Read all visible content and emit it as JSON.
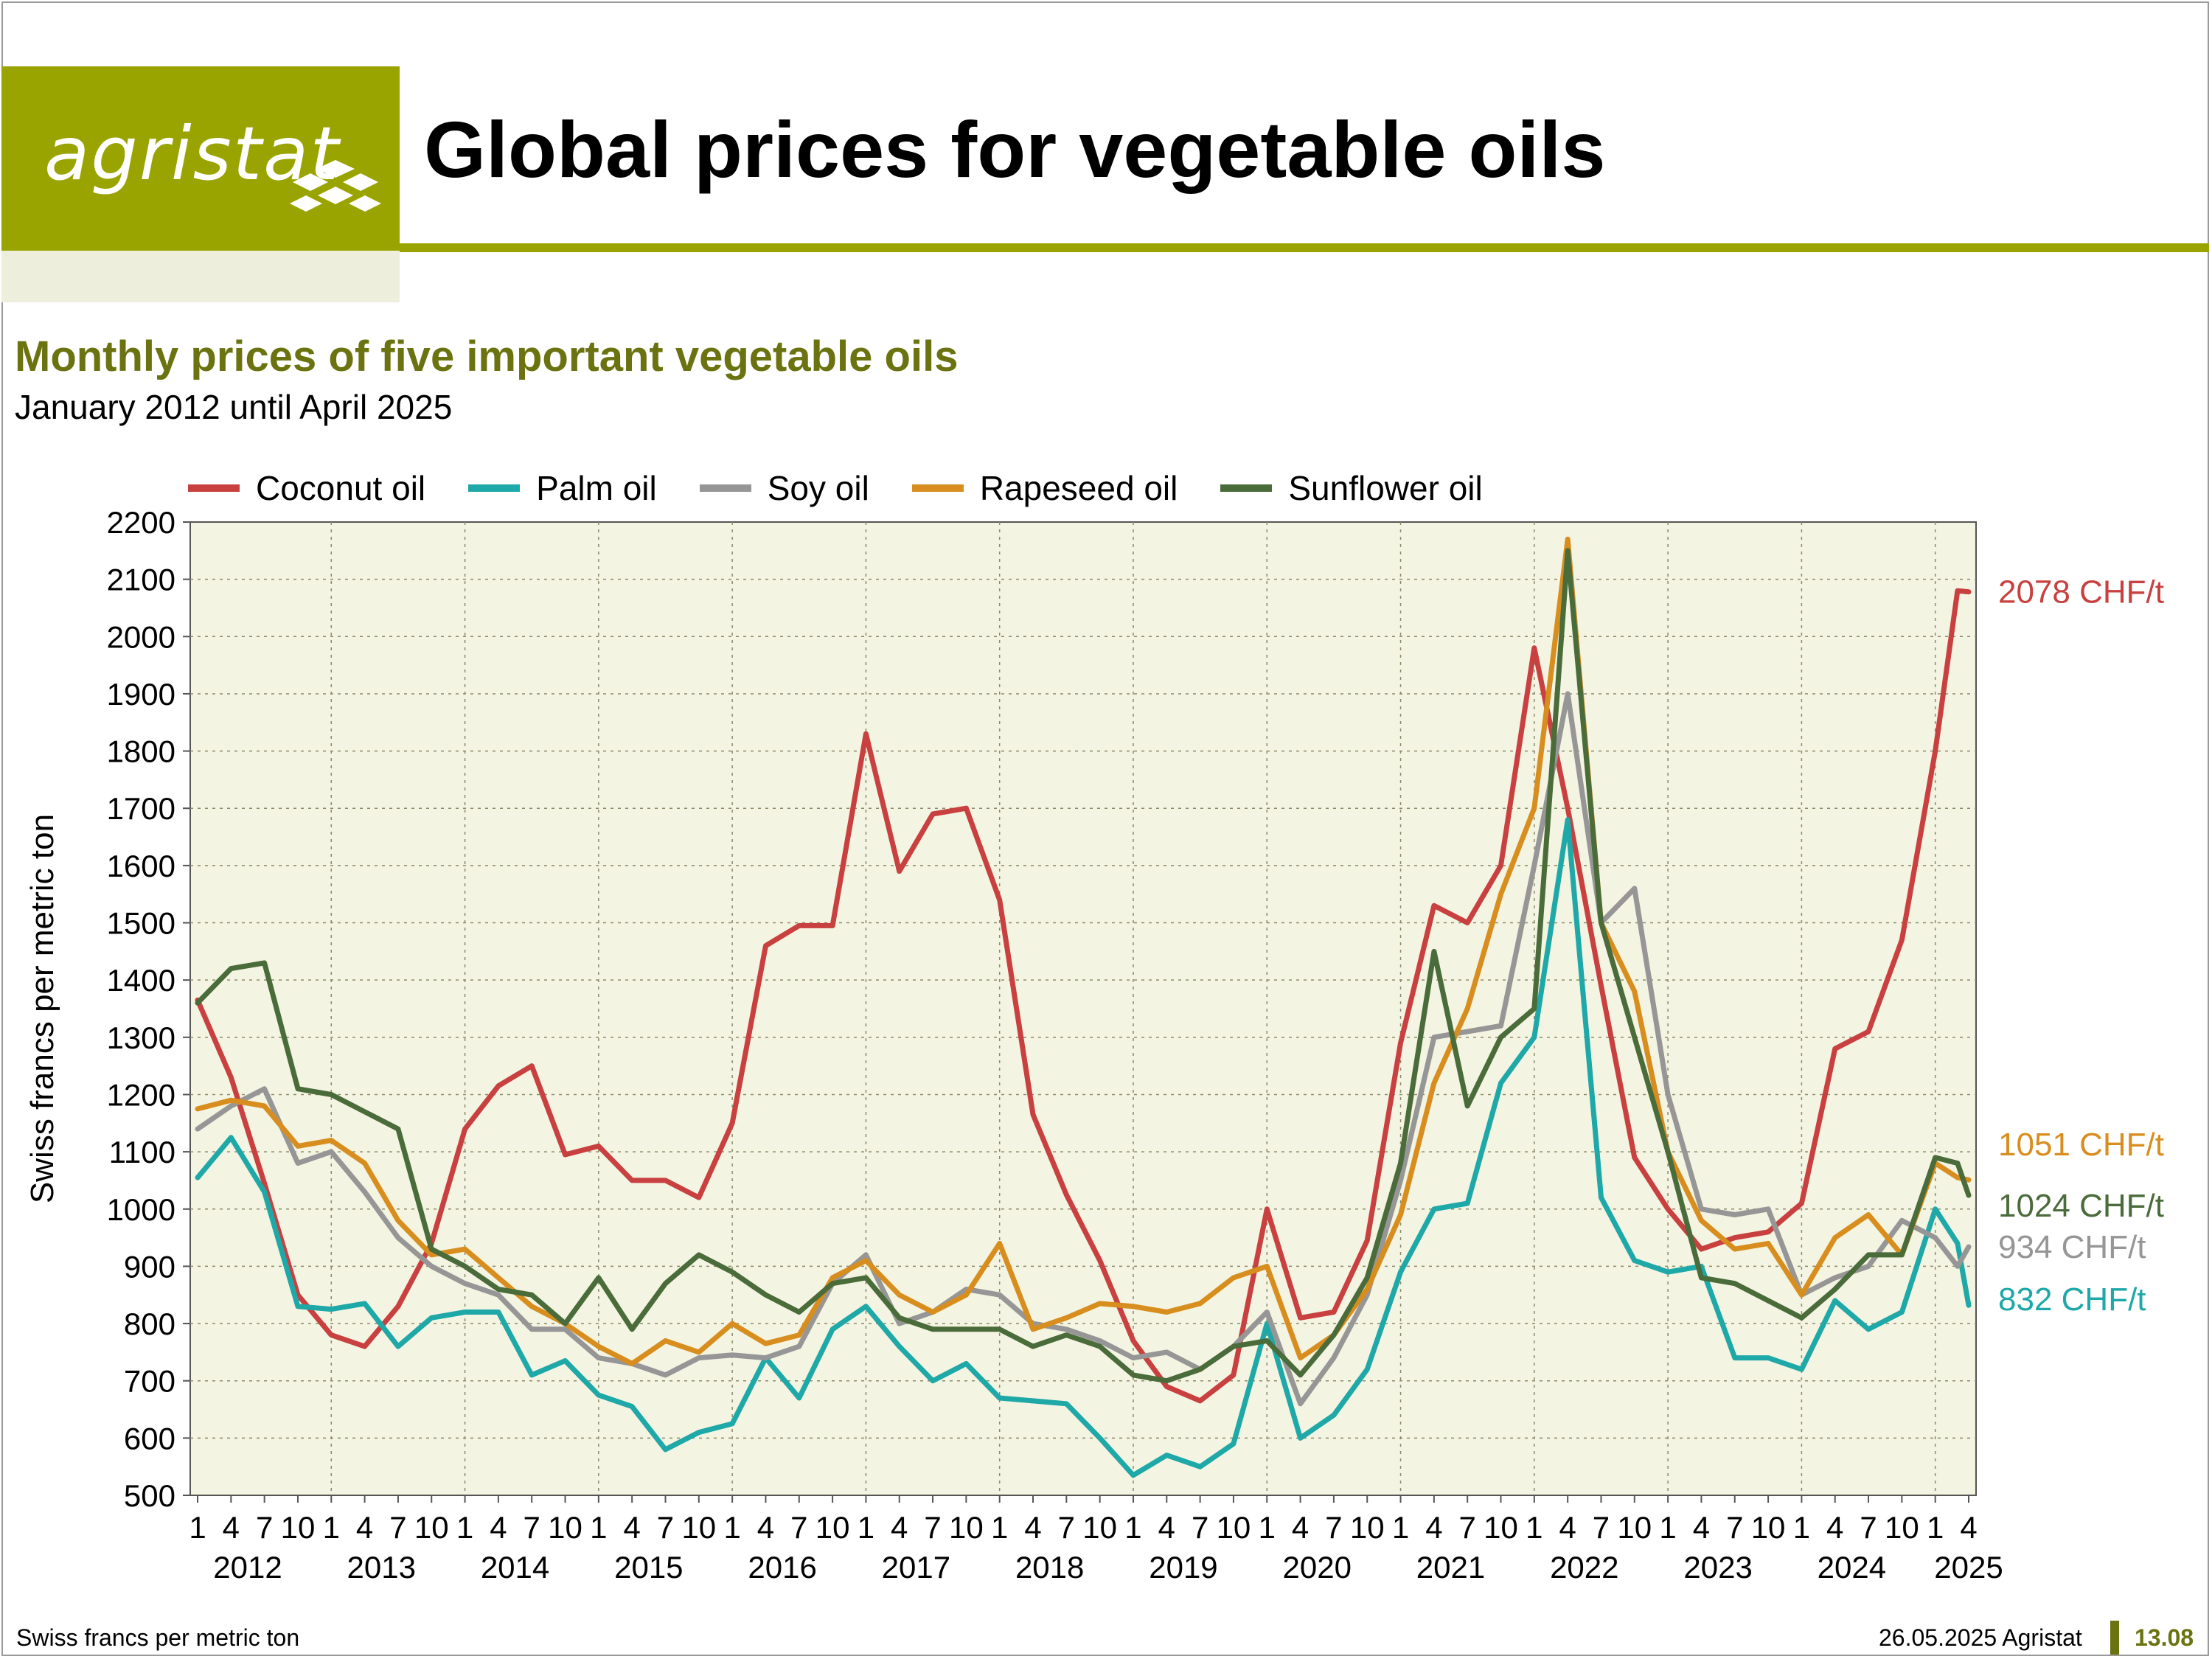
{
  "header": {
    "logo": "agristat",
    "title": "Global prices for vegetable oils"
  },
  "subtitle": "Monthly prices of five important vegetable oils",
  "period": "January 2012 until April 2025",
  "footer": {
    "unit_note": "Swiss francs per metric ton",
    "date_source": "26.05.2025 Agristat",
    "page": "13.08"
  },
  "colors": {
    "brand": "#9aa400",
    "brand_dark": "#6b7310",
    "plot_background": "#f4f4e2"
  },
  "chart_data": {
    "type": "line",
    "title": "",
    "xlabel": "",
    "ylabel": "Swiss francs per metric ton",
    "ylim": [
      500,
      2200
    ],
    "yticks": [
      500,
      600,
      700,
      800,
      900,
      1000,
      1100,
      1200,
      1300,
      1400,
      1500,
      1600,
      1700,
      1800,
      1900,
      2000,
      2100,
      2200
    ],
    "grid": true,
    "legend_position": "top",
    "x_start": "2012-01",
    "x_end": "2025-04",
    "x_month_ticks": [
      "1",
      "4",
      "7",
      "10"
    ],
    "x_years": [
      "2012",
      "2013",
      "2014",
      "2015",
      "2016",
      "2017",
      "2018",
      "2019",
      "2020",
      "2021",
      "2022",
      "2023",
      "2024",
      "2025"
    ],
    "series": [
      {
        "name": "Coconut oil",
        "color": "#c8403f",
        "end_label": "2078 CHF/t",
        "values": [
          [
            "2012-01",
            1365
          ],
          [
            "2012-04",
            1230
          ],
          [
            "2012-07",
            1045
          ],
          [
            "2012-10",
            850
          ],
          [
            "2013-01",
            780
          ],
          [
            "2013-04",
            760
          ],
          [
            "2013-07",
            830
          ],
          [
            "2013-10",
            940
          ],
          [
            "2014-01",
            1140
          ],
          [
            "2014-04",
            1215
          ],
          [
            "2014-07",
            1250
          ],
          [
            "2014-10",
            1095
          ],
          [
            "2015-01",
            1110
          ],
          [
            "2015-04",
            1050
          ],
          [
            "2015-07",
            1050
          ],
          [
            "2015-10",
            1020
          ],
          [
            "2016-01",
            1150
          ],
          [
            "2016-04",
            1460
          ],
          [
            "2016-07",
            1495
          ],
          [
            "2016-10",
            1495
          ],
          [
            "2017-01",
            1830
          ],
          [
            "2017-04",
            1590
          ],
          [
            "2017-07",
            1690
          ],
          [
            "2017-10",
            1700
          ],
          [
            "2018-01",
            1540
          ],
          [
            "2018-04",
            1165
          ],
          [
            "2018-07",
            1025
          ],
          [
            "2018-10",
            910
          ],
          [
            "2019-01",
            770
          ],
          [
            "2019-04",
            690
          ],
          [
            "2019-07",
            665
          ],
          [
            "2019-10",
            710
          ],
          [
            "2020-01",
            1000
          ],
          [
            "2020-04",
            810
          ],
          [
            "2020-07",
            820
          ],
          [
            "2020-10",
            945
          ],
          [
            "2021-01",
            1290
          ],
          [
            "2021-04",
            1530
          ],
          [
            "2021-07",
            1500
          ],
          [
            "2021-10",
            1600
          ],
          [
            "2022-01",
            1980
          ],
          [
            "2022-04",
            1700
          ],
          [
            "2022-07",
            1390
          ],
          [
            "2022-10",
            1090
          ],
          [
            "2023-01",
            1000
          ],
          [
            "2023-04",
            930
          ],
          [
            "2023-07",
            950
          ],
          [
            "2023-10",
            960
          ],
          [
            "2024-01",
            1010
          ],
          [
            "2024-04",
            1280
          ],
          [
            "2024-07",
            1310
          ],
          [
            "2024-10",
            1470
          ],
          [
            "2025-01",
            1800
          ],
          [
            "2025-03",
            2080
          ],
          [
            "2025-04",
            2078
          ]
        ]
      },
      {
        "name": "Palm oil",
        "color": "#1ea8a8",
        "end_label": "832 CHF/t",
        "values": [
          [
            "2012-01",
            1055
          ],
          [
            "2012-04",
            1125
          ],
          [
            "2012-07",
            1030
          ],
          [
            "2012-10",
            830
          ],
          [
            "2013-01",
            825
          ],
          [
            "2013-04",
            835
          ],
          [
            "2013-07",
            760
          ],
          [
            "2013-10",
            810
          ],
          [
            "2014-01",
            820
          ],
          [
            "2014-04",
            820
          ],
          [
            "2014-07",
            710
          ],
          [
            "2014-10",
            735
          ],
          [
            "2015-01",
            675
          ],
          [
            "2015-04",
            655
          ],
          [
            "2015-07",
            580
          ],
          [
            "2015-10",
            610
          ],
          [
            "2016-01",
            625
          ],
          [
            "2016-04",
            740
          ],
          [
            "2016-07",
            670
          ],
          [
            "2016-10",
            790
          ],
          [
            "2017-01",
            830
          ],
          [
            "2017-04",
            760
          ],
          [
            "2017-07",
            700
          ],
          [
            "2017-10",
            730
          ],
          [
            "2018-01",
            670
          ],
          [
            "2018-04",
            665
          ],
          [
            "2018-07",
            660
          ],
          [
            "2018-10",
            600
          ],
          [
            "2019-01",
            535
          ],
          [
            "2019-04",
            570
          ],
          [
            "2019-07",
            550
          ],
          [
            "2019-10",
            590
          ],
          [
            "2020-01",
            800
          ],
          [
            "2020-04",
            600
          ],
          [
            "2020-07",
            640
          ],
          [
            "2020-10",
            720
          ],
          [
            "2021-01",
            890
          ],
          [
            "2021-04",
            1000
          ],
          [
            "2021-07",
            1010
          ],
          [
            "2021-10",
            1220
          ],
          [
            "2022-01",
            1300
          ],
          [
            "2022-04",
            1680
          ],
          [
            "2022-07",
            1020
          ],
          [
            "2022-10",
            910
          ],
          [
            "2023-01",
            890
          ],
          [
            "2023-04",
            900
          ],
          [
            "2023-07",
            740
          ],
          [
            "2023-10",
            740
          ],
          [
            "2024-01",
            720
          ],
          [
            "2024-04",
            840
          ],
          [
            "2024-07",
            790
          ],
          [
            "2024-10",
            820
          ],
          [
            "2025-01",
            1000
          ],
          [
            "2025-03",
            940
          ],
          [
            "2025-04",
            832
          ]
        ]
      },
      {
        "name": "Soy oil",
        "color": "#969696",
        "end_label": "934 CHF/t",
        "values": [
          [
            "2012-01",
            1140
          ],
          [
            "2012-04",
            1180
          ],
          [
            "2012-07",
            1210
          ],
          [
            "2012-10",
            1080
          ],
          [
            "2013-01",
            1100
          ],
          [
            "2013-04",
            1030
          ],
          [
            "2013-07",
            950
          ],
          [
            "2013-10",
            900
          ],
          [
            "2014-01",
            870
          ],
          [
            "2014-04",
            850
          ],
          [
            "2014-07",
            790
          ],
          [
            "2014-10",
            790
          ],
          [
            "2015-01",
            740
          ],
          [
            "2015-04",
            730
          ],
          [
            "2015-07",
            710
          ],
          [
            "2015-10",
            740
          ],
          [
            "2016-01",
            745
          ],
          [
            "2016-04",
            740
          ],
          [
            "2016-07",
            760
          ],
          [
            "2016-10",
            870
          ],
          [
            "2017-01",
            920
          ],
          [
            "2017-04",
            800
          ],
          [
            "2017-07",
            820
          ],
          [
            "2017-10",
            860
          ],
          [
            "2018-01",
            850
          ],
          [
            "2018-04",
            800
          ],
          [
            "2018-07",
            790
          ],
          [
            "2018-10",
            770
          ],
          [
            "2019-01",
            740
          ],
          [
            "2019-04",
            750
          ],
          [
            "2019-07",
            720
          ],
          [
            "2019-10",
            760
          ],
          [
            "2020-01",
            820
          ],
          [
            "2020-04",
            660
          ],
          [
            "2020-07",
            740
          ],
          [
            "2020-10",
            850
          ],
          [
            "2021-01",
            1050
          ],
          [
            "2021-04",
            1300
          ],
          [
            "2021-07",
            1310
          ],
          [
            "2021-10",
            1320
          ],
          [
            "2022-01",
            1600
          ],
          [
            "2022-04",
            1900
          ],
          [
            "2022-07",
            1500
          ],
          [
            "2022-10",
            1560
          ],
          [
            "2023-01",
            1200
          ],
          [
            "2023-04",
            1000
          ],
          [
            "2023-07",
            990
          ],
          [
            "2023-10",
            1000
          ],
          [
            "2024-01",
            850
          ],
          [
            "2024-04",
            880
          ],
          [
            "2024-07",
            900
          ],
          [
            "2024-10",
            980
          ],
          [
            "2025-01",
            950
          ],
          [
            "2025-03",
            900
          ],
          [
            "2025-04",
            934
          ]
        ]
      },
      {
        "name": "Rapeseed oil",
        "color": "#d88e1e",
        "end_label": "1051 CHF/t",
        "values": [
          [
            "2012-01",
            1175
          ],
          [
            "2012-04",
            1190
          ],
          [
            "2012-07",
            1180
          ],
          [
            "2012-10",
            1110
          ],
          [
            "2013-01",
            1120
          ],
          [
            "2013-04",
            1080
          ],
          [
            "2013-07",
            980
          ],
          [
            "2013-10",
            920
          ],
          [
            "2014-01",
            930
          ],
          [
            "2014-04",
            880
          ],
          [
            "2014-07",
            830
          ],
          [
            "2014-10",
            800
          ],
          [
            "2015-01",
            760
          ],
          [
            "2015-04",
            730
          ],
          [
            "2015-07",
            770
          ],
          [
            "2015-10",
            750
          ],
          [
            "2016-01",
            800
          ],
          [
            "2016-04",
            765
          ],
          [
            "2016-07",
            780
          ],
          [
            "2016-10",
            880
          ],
          [
            "2017-01",
            910
          ],
          [
            "2017-04",
            850
          ],
          [
            "2017-07",
            820
          ],
          [
            "2017-10",
            850
          ],
          [
            "2018-01",
            940
          ],
          [
            "2018-04",
            790
          ],
          [
            "2018-07",
            810
          ],
          [
            "2018-10",
            835
          ],
          [
            "2019-01",
            830
          ],
          [
            "2019-04",
            820
          ],
          [
            "2019-07",
            835
          ],
          [
            "2019-10",
            880
          ],
          [
            "2020-01",
            900
          ],
          [
            "2020-04",
            740
          ],
          [
            "2020-07",
            780
          ],
          [
            "2020-10",
            860
          ],
          [
            "2021-01",
            990
          ],
          [
            "2021-04",
            1220
          ],
          [
            "2021-07",
            1350
          ],
          [
            "2021-10",
            1550
          ],
          [
            "2022-01",
            1700
          ],
          [
            "2022-04",
            2170
          ],
          [
            "2022-07",
            1500
          ],
          [
            "2022-10",
            1380
          ],
          [
            "2023-01",
            1100
          ],
          [
            "2023-04",
            980
          ],
          [
            "2023-07",
            930
          ],
          [
            "2023-10",
            940
          ],
          [
            "2024-01",
            850
          ],
          [
            "2024-04",
            950
          ],
          [
            "2024-07",
            990
          ],
          [
            "2024-10",
            920
          ],
          [
            "2025-01",
            1080
          ],
          [
            "2025-03",
            1055
          ],
          [
            "2025-04",
            1051
          ]
        ]
      },
      {
        "name": "Sunflower oil",
        "color": "#4a6b3a",
        "end_label": "1024 CHF/t",
        "values": [
          [
            "2012-01",
            1360
          ],
          [
            "2012-04",
            1420
          ],
          [
            "2012-07",
            1430
          ],
          [
            "2012-10",
            1210
          ],
          [
            "2013-01",
            1200
          ],
          [
            "2013-04",
            1170
          ],
          [
            "2013-07",
            1140
          ],
          [
            "2013-10",
            930
          ],
          [
            "2014-01",
            900
          ],
          [
            "2014-04",
            860
          ],
          [
            "2014-07",
            850
          ],
          [
            "2014-10",
            800
          ],
          [
            "2015-01",
            880
          ],
          [
            "2015-04",
            790
          ],
          [
            "2015-07",
            870
          ],
          [
            "2015-10",
            920
          ],
          [
            "2016-01",
            890
          ],
          [
            "2016-04",
            850
          ],
          [
            "2016-07",
            820
          ],
          [
            "2016-10",
            870
          ],
          [
            "2017-01",
            880
          ],
          [
            "2017-04",
            810
          ],
          [
            "2017-07",
            790
          ],
          [
            "2017-10",
            790
          ],
          [
            "2018-01",
            790
          ],
          [
            "2018-04",
            760
          ],
          [
            "2018-07",
            780
          ],
          [
            "2018-10",
            760
          ],
          [
            "2019-01",
            710
          ],
          [
            "2019-04",
            700
          ],
          [
            "2019-07",
            720
          ],
          [
            "2019-10",
            760
          ],
          [
            "2020-01",
            770
          ],
          [
            "2020-04",
            710
          ],
          [
            "2020-07",
            780
          ],
          [
            "2020-10",
            880
          ],
          [
            "2021-01",
            1080
          ],
          [
            "2021-04",
            1450
          ],
          [
            "2021-07",
            1180
          ],
          [
            "2021-10",
            1300
          ],
          [
            "2022-01",
            1350
          ],
          [
            "2022-04",
            2150
          ],
          [
            "2022-07",
            1500
          ],
          [
            "2022-10",
            1300
          ],
          [
            "2023-01",
            1100
          ],
          [
            "2023-04",
            880
          ],
          [
            "2023-07",
            870
          ],
          [
            "2023-10",
            840
          ],
          [
            "2024-01",
            810
          ],
          [
            "2024-04",
            860
          ],
          [
            "2024-07",
            920
          ],
          [
            "2024-10",
            920
          ],
          [
            "2025-01",
            1090
          ],
          [
            "2025-03",
            1080
          ],
          [
            "2025-04",
            1024
          ]
        ]
      }
    ]
  }
}
